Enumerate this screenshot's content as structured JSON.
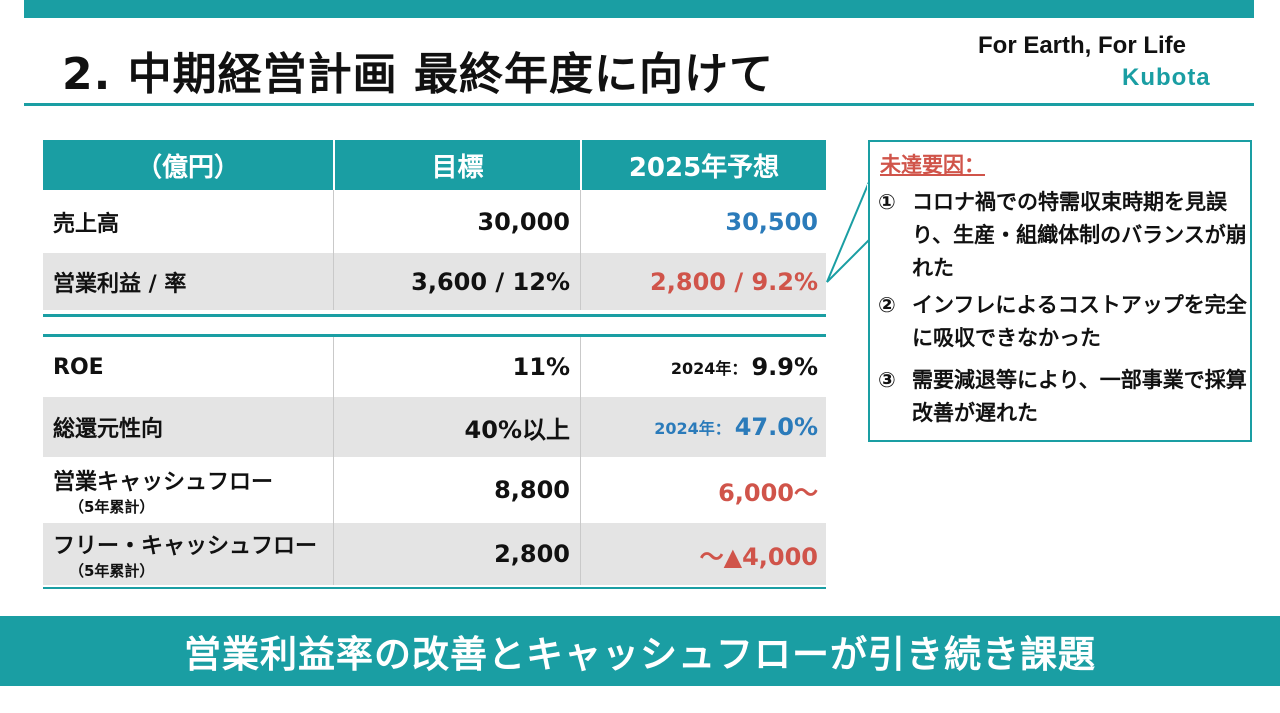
{
  "header": {
    "title": "2. 中期経営計画 最終年度に向けて",
    "slogan": "For Earth, For Life",
    "brand": "Kubota"
  },
  "table": {
    "columns": [
      "（億円）",
      "目標",
      "2025年予想"
    ],
    "rows": [
      {
        "label": "売上高",
        "target": "30,000",
        "forecast": "30,500"
      },
      {
        "label": "営業利益 / 率",
        "target": "3,600 / 12%",
        "forecast": "2,800 / 9.2%"
      },
      {
        "label": "ROE",
        "target": "11%",
        "forecast_prefix": "2024年：",
        "forecast": "9.9%"
      },
      {
        "label": "総還元性向",
        "target": "40%以上",
        "forecast_prefix": "2024年：",
        "forecast": "47.0%"
      },
      {
        "label": "営業キャッシュフロー",
        "sublabel": "（5年累計）",
        "target": "8,800",
        "forecast": "6,000～"
      },
      {
        "label": "フリー・キャッシュフロー",
        "sublabel": "（5年累計）",
        "target": "2,800",
        "forecast": "～▲4,000"
      }
    ]
  },
  "callout": {
    "title": "未達要因：",
    "reasons": [
      {
        "num": "①",
        "text": "コロナ禍での特需収束時期を見誤り、生産・組織体制のバランスが崩れた"
      },
      {
        "num": "②",
        "text": "インフレによるコストアップを完全に吸収できなかった"
      },
      {
        "num": "③",
        "text": "需要減退等により、一部事業で採算改善が遅れた"
      }
    ]
  },
  "banner": "営業利益率の改善とキャッシュフローが引き続き課題",
  "colors": {
    "accent": "#1a9ea3",
    "blue": "#2b7bba",
    "red": "#d0544a"
  }
}
